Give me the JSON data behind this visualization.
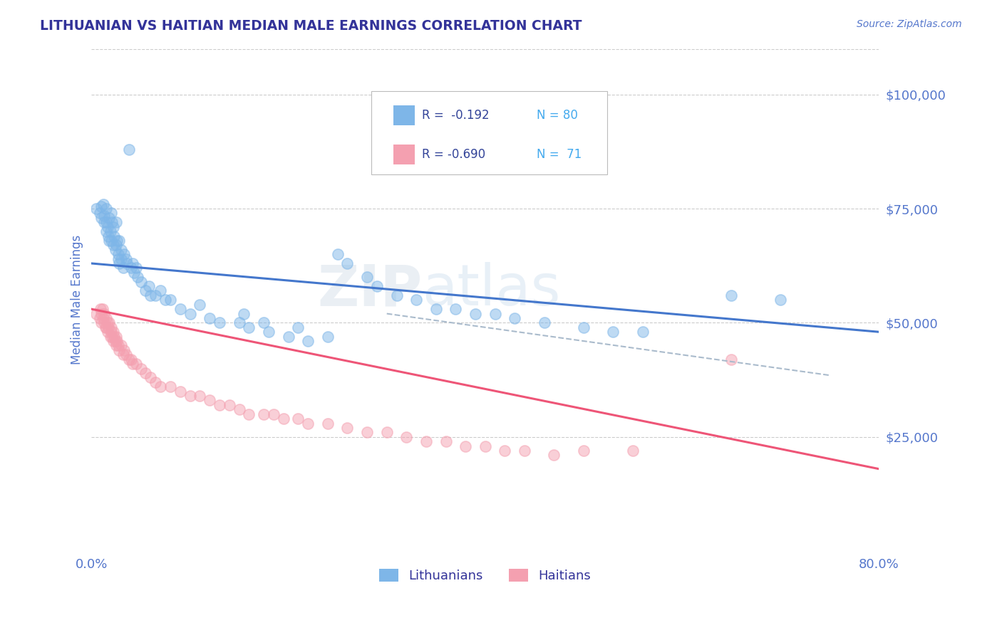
{
  "title": "LITHUANIAN VS HAITIAN MEDIAN MALE EARNINGS CORRELATION CHART",
  "source_text": "Source: ZipAtlas.com",
  "ylabel": "Median Male Earnings",
  "xlim": [
    0.0,
    0.8
  ],
  "ylim": [
    0,
    110000
  ],
  "xtick_positions": [
    0.0,
    0.8
  ],
  "xtick_labels": [
    "0.0%",
    "80.0%"
  ],
  "ytick_values": [
    25000,
    50000,
    75000,
    100000
  ],
  "ytick_labels": [
    "$25,000",
    "$50,000",
    "$75,000",
    "$100,000"
  ],
  "color_lithuanian": "#7EB6E8",
  "color_haitian": "#F4A0B0",
  "color_blue_line": "#4477CC",
  "color_pink_line": "#EE5577",
  "color_dashed_line": "#AABBCC",
  "watermark_zip": "ZIP",
  "watermark_atlas": "atlas",
  "background_color": "#FFFFFF",
  "grid_color": "#CCCCCC",
  "title_color": "#333399",
  "tick_label_color": "#5577CC",
  "legend_r_color": "#334499",
  "legend_n_color": "#44AAEE",
  "lit_trend_x0": 0.0,
  "lit_trend_y0": 63000,
  "lit_trend_x1": 0.8,
  "lit_trend_y1": 48000,
  "hai_trend_x0": 0.0,
  "hai_trend_y0": 53000,
  "hai_trend_x1": 0.8,
  "hai_trend_y1": 18000,
  "dash_trend_x0": 0.3,
  "dash_trend_y0": 52000,
  "dash_trend_x1": 0.75,
  "dash_trend_y1": 38500,
  "lit_x": [
    0.005,
    0.008,
    0.01,
    0.01,
    0.012,
    0.013,
    0.013,
    0.015,
    0.015,
    0.015,
    0.016,
    0.017,
    0.018,
    0.018,
    0.019,
    0.02,
    0.02,
    0.021,
    0.022,
    0.022,
    0.023,
    0.024,
    0.025,
    0.025,
    0.026,
    0.027,
    0.027,
    0.028,
    0.028,
    0.03,
    0.03,
    0.032,
    0.033,
    0.035,
    0.036,
    0.038,
    0.04,
    0.042,
    0.043,
    0.045,
    0.047,
    0.05,
    0.055,
    0.058,
    0.06,
    0.065,
    0.07,
    0.075,
    0.08,
    0.09,
    0.1,
    0.11,
    0.12,
    0.13,
    0.15,
    0.155,
    0.16,
    0.175,
    0.18,
    0.2,
    0.21,
    0.22,
    0.24,
    0.25,
    0.26,
    0.28,
    0.29,
    0.31,
    0.33,
    0.35,
    0.37,
    0.39,
    0.41,
    0.43,
    0.46,
    0.5,
    0.53,
    0.56,
    0.65,
    0.7
  ],
  "lit_y": [
    75000,
    74000,
    75500,
    73000,
    76000,
    73500,
    72000,
    75000,
    72000,
    70000,
    71000,
    69000,
    73000,
    68000,
    70000,
    74000,
    68000,
    72000,
    71000,
    67000,
    69000,
    66000,
    72000,
    67000,
    68000,
    65000,
    64000,
    68000,
    63000,
    66000,
    64000,
    62000,
    65000,
    64000,
    63000,
    88000,
    62000,
    63000,
    61000,
    62000,
    60000,
    59000,
    57000,
    58000,
    56000,
    56000,
    57000,
    55000,
    55000,
    53000,
    52000,
    54000,
    51000,
    50000,
    50000,
    52000,
    49000,
    50000,
    48000,
    47000,
    49000,
    46000,
    47000,
    65000,
    63000,
    60000,
    58000,
    56000,
    55000,
    53000,
    53000,
    52000,
    52000,
    51000,
    50000,
    49000,
    48000,
    48000,
    56000,
    55000
  ],
  "hai_x": [
    0.005,
    0.008,
    0.009,
    0.01,
    0.01,
    0.011,
    0.012,
    0.013,
    0.013,
    0.014,
    0.015,
    0.015,
    0.016,
    0.016,
    0.017,
    0.018,
    0.019,
    0.02,
    0.02,
    0.021,
    0.022,
    0.022,
    0.023,
    0.024,
    0.025,
    0.025,
    0.026,
    0.027,
    0.028,
    0.03,
    0.032,
    0.033,
    0.035,
    0.038,
    0.04,
    0.042,
    0.045,
    0.05,
    0.055,
    0.06,
    0.065,
    0.07,
    0.08,
    0.09,
    0.1,
    0.11,
    0.12,
    0.13,
    0.14,
    0.15,
    0.16,
    0.175,
    0.185,
    0.195,
    0.21,
    0.22,
    0.24,
    0.26,
    0.28,
    0.3,
    0.32,
    0.34,
    0.36,
    0.38,
    0.4,
    0.42,
    0.44,
    0.47,
    0.5,
    0.55,
    0.65
  ],
  "hai_y": [
    52000,
    51000,
    53000,
    52000,
    50000,
    53000,
    51000,
    50000,
    52000,
    49000,
    51000,
    49000,
    50000,
    48000,
    49000,
    50000,
    47000,
    49000,
    48000,
    47000,
    48000,
    46000,
    47000,
    46000,
    47000,
    45000,
    46000,
    45000,
    44000,
    45000,
    43000,
    44000,
    43000,
    42000,
    42000,
    41000,
    41000,
    40000,
    39000,
    38000,
    37000,
    36000,
    36000,
    35000,
    34000,
    34000,
    33000,
    32000,
    32000,
    31000,
    30000,
    30000,
    30000,
    29000,
    29000,
    28000,
    28000,
    27000,
    26000,
    26000,
    25000,
    24000,
    24000,
    23000,
    23000,
    22000,
    22000,
    21000,
    22000,
    22000,
    42000
  ]
}
